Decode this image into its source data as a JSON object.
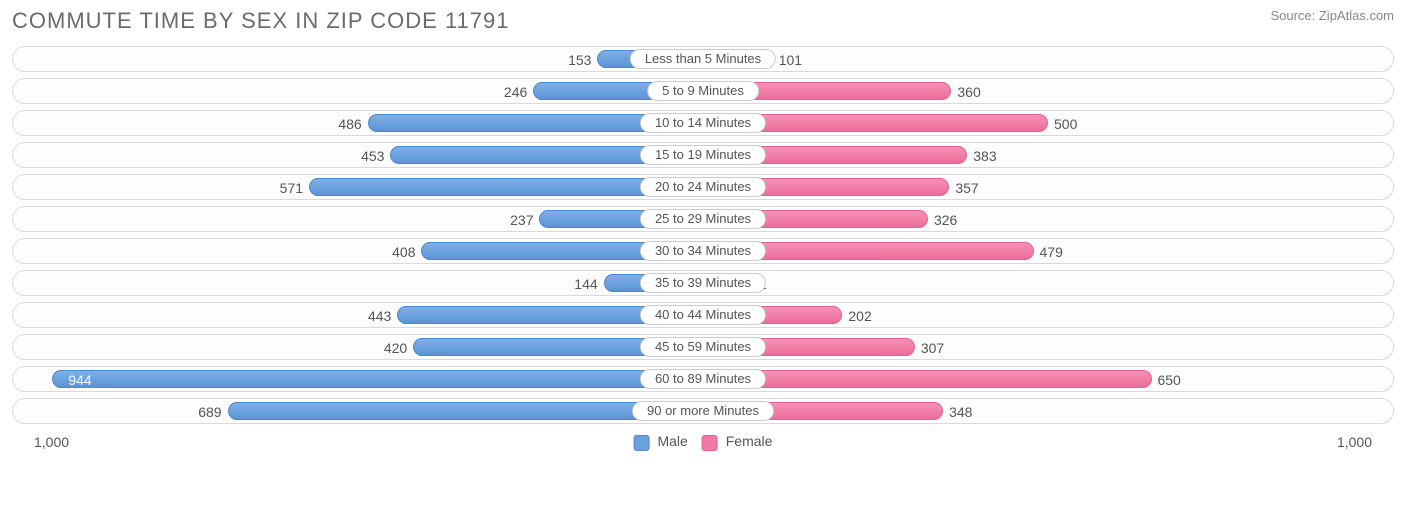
{
  "title": "COMMUTE TIME BY SEX IN ZIP CODE 11791",
  "source": "Source: ZipAtlas.com",
  "chart": {
    "type": "bar",
    "orientation": "horizontal-diverging",
    "axis_max": 1000,
    "axis_label_left": "1,000",
    "axis_label_right": "1,000",
    "inside_threshold": 900,
    "male_color": "#6aa0de",
    "female_color": "#ee7aa6",
    "track_border_color": "#d9d9d9",
    "background_color": "#ffffff",
    "label_fontsize": 13,
    "value_fontsize": 14,
    "rows": [
      {
        "category": "Less than 5 Minutes",
        "male": 153,
        "female": 101
      },
      {
        "category": "5 to 9 Minutes",
        "male": 246,
        "female": 360
      },
      {
        "category": "10 to 14 Minutes",
        "male": 486,
        "female": 500
      },
      {
        "category": "15 to 19 Minutes",
        "male": 453,
        "female": 383
      },
      {
        "category": "20 to 24 Minutes",
        "male": 571,
        "female": 357
      },
      {
        "category": "25 to 29 Minutes",
        "male": 237,
        "female": 326
      },
      {
        "category": "30 to 34 Minutes",
        "male": 408,
        "female": 479
      },
      {
        "category": "35 to 39 Minutes",
        "male": 144,
        "female": 61
      },
      {
        "category": "40 to 44 Minutes",
        "male": 443,
        "female": 202
      },
      {
        "category": "45 to 59 Minutes",
        "male": 420,
        "female": 307
      },
      {
        "category": "60 to 89 Minutes",
        "male": 944,
        "female": 650
      },
      {
        "category": "90 or more Minutes",
        "male": 689,
        "female": 348
      }
    ]
  },
  "legend": {
    "male": "Male",
    "female": "Female"
  }
}
